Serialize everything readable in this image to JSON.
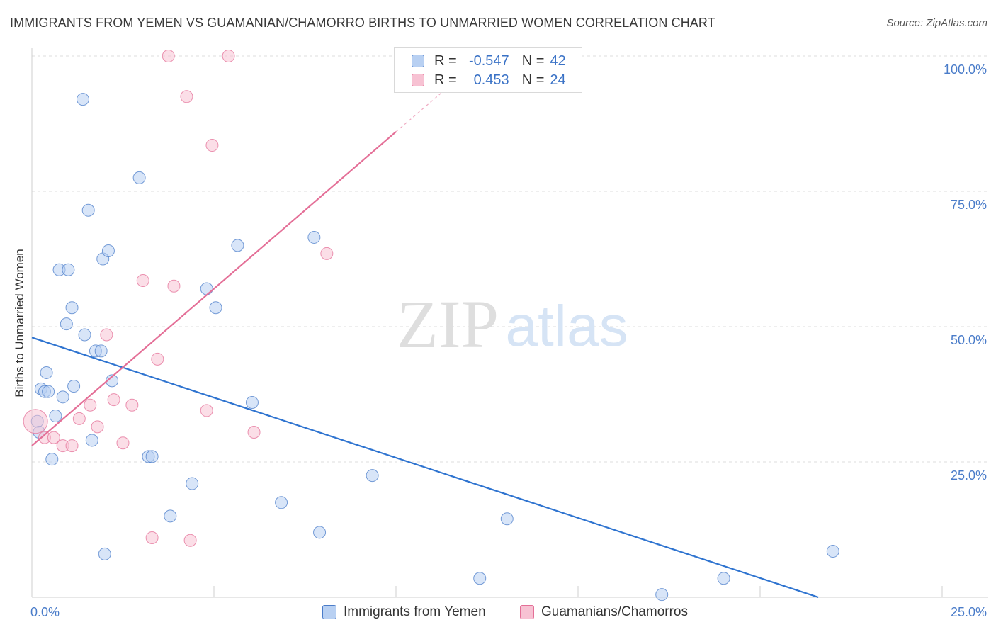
{
  "title": "IMMIGRANTS FROM YEMEN VS GUAMANIAN/CHAMORRO BIRTHS TO UNMARRIED WOMEN CORRELATION CHART",
  "source": "Source: ZipAtlas.com",
  "colors": {
    "blue": "#4a7cc9",
    "blue_fill": "#b8d0f2",
    "blue_line": "#2f74d0",
    "pink": "#e46f97",
    "pink_fill": "#f7c2d3",
    "pink_line": "#e46f97"
  },
  "legend": {
    "rows": [
      {
        "r_label": "R =",
        "r_value": "-0.547",
        "n_label": "N =",
        "n_value": "42"
      },
      {
        "r_label": "R =",
        "r_value": "0.453",
        "n_label": "N =",
        "n_value": "24"
      }
    ]
  },
  "bottom_legend": {
    "blue_label": "Immigrants from Yemen",
    "pink_label": "Guamanians/Chamorros"
  },
  "watermark": {
    "zip": "ZIP",
    "atlas": "atlas"
  },
  "chart_data": {
    "type": "scatter",
    "xlabel": "",
    "ylabel": "Births to Unmarried Women",
    "xlim": [
      0,
      25
    ],
    "ylim": [
      0,
      100
    ],
    "x_tick_labels": [
      "0.0%",
      "25.0%"
    ],
    "y_ticks": [
      25,
      50,
      75,
      100
    ],
    "y_tick_labels": [
      "25.0%",
      "50.0%",
      "75.0%",
      "100.0%"
    ],
    "grid": true,
    "series": [
      {
        "name": "Immigrants from Yemen",
        "color": "blue",
        "points": [
          [
            0.15,
            32.5
          ],
          [
            0.2,
            30.5
          ],
          [
            0.25,
            38.5
          ],
          [
            0.35,
            38.0
          ],
          [
            0.4,
            41.5
          ],
          [
            0.45,
            38.0
          ],
          [
            0.55,
            25.5
          ],
          [
            0.65,
            33.5
          ],
          [
            0.75,
            60.5
          ],
          [
            0.85,
            37.0
          ],
          [
            0.95,
            50.5
          ],
          [
            1.0,
            60.5
          ],
          [
            1.1,
            53.5
          ],
          [
            1.15,
            39.0
          ],
          [
            1.4,
            92.0
          ],
          [
            1.45,
            48.5
          ],
          [
            1.55,
            71.5
          ],
          [
            1.65,
            29.0
          ],
          [
            1.75,
            45.5
          ],
          [
            1.9,
            45.5
          ],
          [
            1.95,
            62.5
          ],
          [
            2.0,
            8.0
          ],
          [
            2.1,
            64.0
          ],
          [
            2.2,
            40.0
          ],
          [
            2.95,
            77.5
          ],
          [
            3.2,
            26.0
          ],
          [
            3.3,
            26.0
          ],
          [
            3.8,
            15.0
          ],
          [
            4.4,
            21.0
          ],
          [
            4.8,
            57.0
          ],
          [
            5.05,
            53.5
          ],
          [
            5.65,
            65.0
          ],
          [
            6.05,
            36.0
          ],
          [
            6.85,
            17.5
          ],
          [
            7.75,
            66.5
          ],
          [
            7.9,
            12.0
          ],
          [
            9.35,
            22.5
          ],
          [
            12.3,
            3.5
          ],
          [
            13.05,
            14.5
          ],
          [
            17.3,
            0.5
          ],
          [
            19.0,
            3.5
          ],
          [
            22.0,
            8.5
          ]
        ],
        "trend": {
          "x0": 0,
          "y0": 48.0,
          "x1": 21.6,
          "y1": 0
        }
      },
      {
        "name": "Guamanians/Chamorros",
        "color": "pink",
        "points": [
          [
            0.1,
            32.5
          ],
          [
            0.35,
            29.5
          ],
          [
            0.6,
            29.5
          ],
          [
            0.85,
            28.0
          ],
          [
            1.1,
            28.0
          ],
          [
            1.3,
            33.0
          ],
          [
            1.6,
            35.5
          ],
          [
            1.8,
            31.5
          ],
          [
            2.05,
            48.5
          ],
          [
            2.25,
            36.5
          ],
          [
            2.5,
            28.5
          ],
          [
            2.75,
            35.5
          ],
          [
            3.05,
            58.5
          ],
          [
            3.3,
            11.0
          ],
          [
            3.45,
            44.0
          ],
          [
            3.75,
            100.0
          ],
          [
            3.9,
            57.5
          ],
          [
            4.25,
            92.5
          ],
          [
            4.35,
            10.5
          ],
          [
            4.8,
            34.5
          ],
          [
            4.95,
            83.5
          ],
          [
            5.4,
            100.0
          ],
          [
            6.1,
            30.5
          ],
          [
            8.1,
            63.5
          ]
        ],
        "trend": {
          "x0": 0,
          "y0": 28.0,
          "x1": 10.0,
          "y1": 86.0
        },
        "trend_dashed": {
          "x0": 10.0,
          "y0": 86.0,
          "x1": 11.3,
          "y1": 93.5
        }
      }
    ]
  }
}
